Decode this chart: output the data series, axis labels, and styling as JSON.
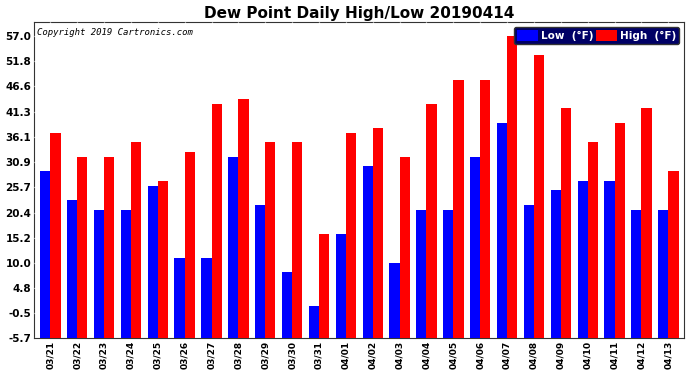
{
  "title": "Dew Point Daily High/Low 20190414",
  "copyright": "Copyright 2019 Cartronics.com",
  "legend_low": "Low  (°F)",
  "legend_high": "High  (°F)",
  "low_color": "#0000ff",
  "high_color": "#ff0000",
  "bg_color": "#ffffff",
  "plot_bg": "#ffffff",
  "grid_color": "#aaaaaa",
  "ylim_min": -5.7,
  "ylim_max": 60.0,
  "yticks": [
    -5.7,
    -0.5,
    4.8,
    10.0,
    15.2,
    20.4,
    25.7,
    30.9,
    36.1,
    41.3,
    46.6,
    51.8,
    57.0
  ],
  "dates": [
    "03/21",
    "03/22",
    "03/23",
    "03/24",
    "03/25",
    "03/26",
    "03/27",
    "03/28",
    "03/29",
    "03/30",
    "03/31",
    "04/01",
    "04/02",
    "04/03",
    "04/04",
    "04/05",
    "04/06",
    "04/07",
    "04/08",
    "04/09",
    "04/10",
    "04/11",
    "04/12",
    "04/13"
  ],
  "low_vals": [
    29,
    23,
    21,
    21,
    26,
    11,
    11,
    32,
    22,
    8,
    1,
    16,
    30,
    10,
    21,
    21,
    32,
    39,
    22,
    25,
    27,
    27,
    21,
    21
  ],
  "high_vals": [
    37,
    32,
    32,
    35,
    27,
    33,
    43,
    44,
    35,
    35,
    16,
    37,
    38,
    32,
    43,
    48,
    48,
    57,
    53,
    42,
    35,
    39,
    42,
    29
  ]
}
